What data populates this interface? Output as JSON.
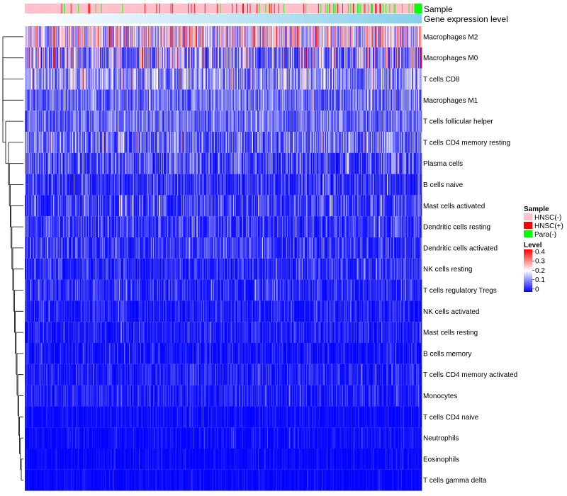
{
  "chart_data": {
    "type": "heatmap",
    "title": "",
    "column_annotations": [
      {
        "label": "Sample",
        "kind": "categorical"
      },
      {
        "label": "Gene expression level",
        "kind": "continuous"
      }
    ],
    "num_columns": 640,
    "sample_groups": [
      {
        "name": "HNSC(-)",
        "color": "#FFC0CB"
      },
      {
        "name": "HNSC(+)",
        "color": "#FF0000"
      },
      {
        "name": "Para(-)",
        "color": "#00FF00"
      }
    ],
    "gene_expression_gradient": {
      "low": "#FFFFFF",
      "high": "#87CEEB"
    },
    "rows": [
      {
        "name": "Macrophages M2",
        "mean": 0.24,
        "spread": 0.11
      },
      {
        "name": "Macrophages M0",
        "mean": 0.15,
        "spread": 0.15
      },
      {
        "name": "T cells CD8",
        "mean": 0.14,
        "spread": 0.09
      },
      {
        "name": "Macrophages M1",
        "mean": 0.1,
        "spread": 0.06
      },
      {
        "name": "T cells follicular helper",
        "mean": 0.1,
        "spread": 0.05
      },
      {
        "name": "T cells CD4 memory resting",
        "mean": 0.1,
        "spread": 0.09
      },
      {
        "name": "Plasma cells",
        "mean": 0.07,
        "spread": 0.08
      },
      {
        "name": "B cells naive",
        "mean": 0.05,
        "spread": 0.06
      },
      {
        "name": "Mast cells activated",
        "mean": 0.06,
        "spread": 0.07
      },
      {
        "name": "Dendritic cells resting",
        "mean": 0.05,
        "spread": 0.06
      },
      {
        "name": "Dendritic cells activated",
        "mean": 0.05,
        "spread": 0.06
      },
      {
        "name": "NK cells resting",
        "mean": 0.04,
        "spread": 0.05
      },
      {
        "name": "T cells regulatory  Tregs",
        "mean": 0.04,
        "spread": 0.05
      },
      {
        "name": "NK cells activated",
        "mean": 0.03,
        "spread": 0.04
      },
      {
        "name": "Mast cells resting",
        "mean": 0.03,
        "spread": 0.04
      },
      {
        "name": "B cells memory",
        "mean": 0.02,
        "spread": 0.04
      },
      {
        "name": "T cells CD4 memory activated",
        "mean": 0.03,
        "spread": 0.04
      },
      {
        "name": "Monocytes",
        "mean": 0.03,
        "spread": 0.04
      },
      {
        "name": "T cells CD4 naive",
        "mean": 0.01,
        "spread": 0.03
      },
      {
        "name": "Neutrophils",
        "mean": 0.01,
        "spread": 0.03
      },
      {
        "name": "Eosinophils",
        "mean": 0.005,
        "spread": 0.02
      },
      {
        "name": "T cells gamma delta",
        "mean": 0.005,
        "spread": 0.02
      }
    ],
    "color_scale": {
      "min": 0,
      "max": 0.4,
      "stops": [
        {
          "value": 0,
          "color": "#0000FF"
        },
        {
          "value": 0.2,
          "color": "#FFFFFF"
        },
        {
          "value": 0.4,
          "color": "#FF0000"
        }
      ]
    },
    "legends": {
      "sample": {
        "title": "Sample",
        "entries": [
          "HNSC(-)",
          "HNSC(+)",
          "Para(-)"
        ]
      },
      "level": {
        "title": "Level",
        "ticks": [
          "0.4",
          "0.3",
          "0.2",
          "0.1",
          "0"
        ]
      }
    },
    "row_dendrogram": "left",
    "xlabel": "",
    "ylabel": ""
  }
}
